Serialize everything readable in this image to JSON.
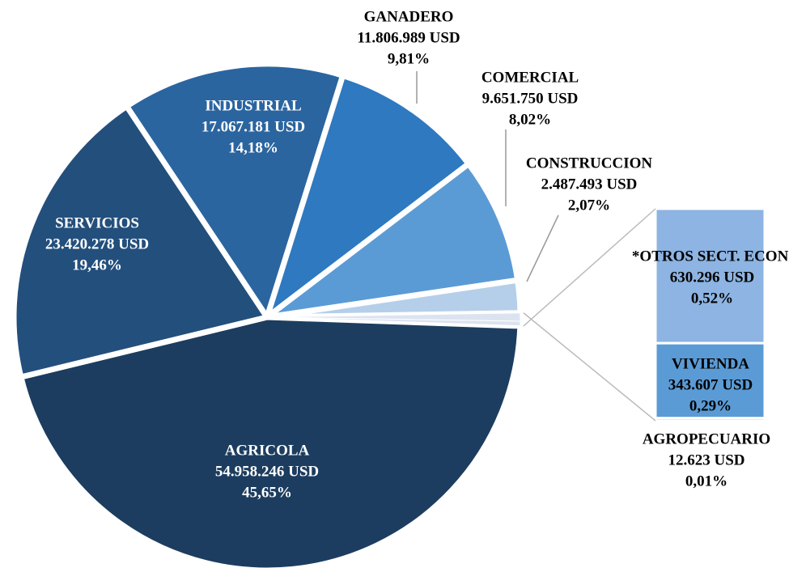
{
  "chart_data": {
    "type": "pie",
    "categories": [
      "AGRICOLA",
      "SERVICIOS",
      "INDUSTRIAL",
      "GANADERO",
      "COMERCIAL",
      "CONSTRUCCION",
      "*OTROS SECT. ECON.",
      "VIVIENDA",
      "AGROPECUARIO"
    ],
    "values": [
      45.65,
      19.46,
      14.18,
      9.81,
      8.02,
      2.07,
      0.52,
      0.29,
      0.01
    ],
    "value_labels": [
      "45,65%",
      "19,46%",
      "14,18%",
      "9,81%",
      "8,02%",
      "2,07%",
      "0,52%",
      "0,29%",
      "0,01%"
    ],
    "amounts": [
      54958246,
      23420278,
      17067181,
      11806989,
      9651750,
      2487493,
      630296,
      343607,
      12623
    ],
    "amount_labels": [
      "54.958.246 USD",
      "23.420.278 USD",
      "17.067.181 USD",
      "11.806.989 USD",
      "9.651.750 USD",
      "2.487.493 USD",
      "630.296 USD",
      "343.607 USD",
      "12.623 USD"
    ],
    "colors": [
      "#1c3d5f",
      "#234f7c",
      "#2b65a0",
      "#2e79c0",
      "#5b9bd5",
      "#b5cfea",
      "#dce3f0",
      "#dce3f0",
      "#dce3f0"
    ],
    "bar_colors": [
      "#8db4e2",
      "#5b9bd5",
      "#5b9bd5"
    ]
  }
}
